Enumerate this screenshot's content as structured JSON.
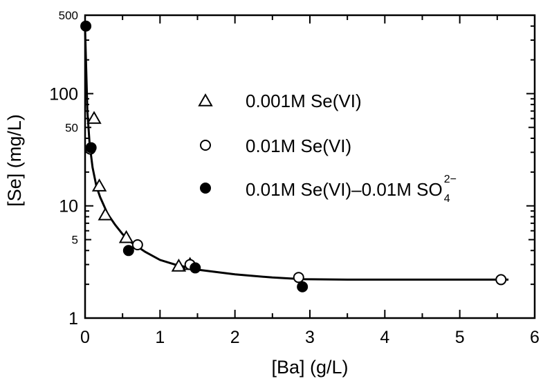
{
  "chart_data": {
    "type": "scatter",
    "xlabel": "[Ba]  (g/L)",
    "ylabel": "[Se]  (mg/L)",
    "xlim": [
      0,
      6
    ],
    "ylim": [
      1,
      500
    ],
    "yscale": "log",
    "grid": false,
    "legend_position": "right-center",
    "x_ticks": [
      "0",
      "1",
      "2",
      "3",
      "4",
      "5",
      "6"
    ],
    "y_ticks": [
      "1",
      "5",
      "10",
      "50",
      "100",
      "500"
    ],
    "series": [
      {
        "name": "0.001M  Se(VI)",
        "marker": "open-triangle",
        "x": [
          0.12,
          0.19,
          0.27,
          0.55,
          1.25,
          1.4
        ],
        "y": [
          60,
          15,
          8.3,
          5.2,
          2.9,
          3.0
        ]
      },
      {
        "name": "0.01M  Se(VI)",
        "marker": "open-circle",
        "x": [
          0.07,
          0.7,
          1.4,
          2.85,
          5.55
        ],
        "y": [
          32,
          4.5,
          3.0,
          2.3,
          2.2
        ]
      },
      {
        "name_main": "0.01M  Se(VI)–0.01M  SO",
        "name_sup": "2−",
        "name_sub": "4",
        "marker": "filled-circle",
        "x": [
          0.01,
          0.08,
          0.58,
          1.47,
          2.9
        ],
        "y": [
          400,
          33,
          4.0,
          2.8,
          1.9
        ]
      }
    ],
    "fit_curve": {
      "x": [
        0.0,
        0.03,
        0.06,
        0.1,
        0.15,
        0.2,
        0.3,
        0.4,
        0.5,
        0.6,
        0.8,
        1.0,
        1.2,
        1.5,
        2.0,
        2.5,
        2.9,
        3.5,
        4.5,
        5.65
      ],
      "y": [
        380,
        70,
        36,
        22,
        15,
        12,
        8.5,
        6.8,
        5.6,
        4.8,
        3.9,
        3.3,
        3.0,
        2.7,
        2.45,
        2.3,
        2.22,
        2.2,
        2.2,
        2.2
      ]
    }
  }
}
